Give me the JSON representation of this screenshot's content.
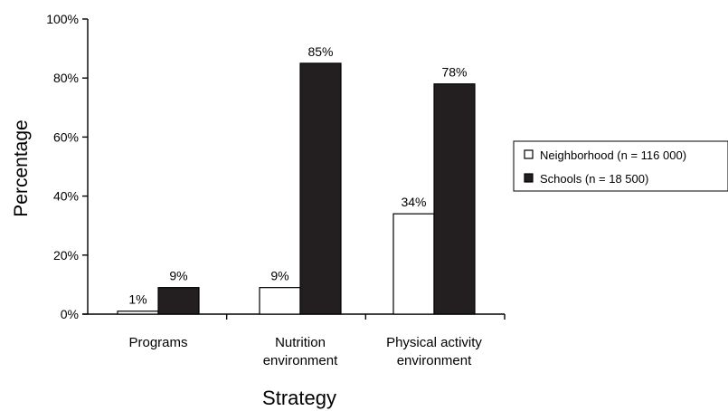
{
  "chart_data": {
    "type": "bar",
    "title": "",
    "xlabel": "Strategy",
    "ylabel": "Percentage",
    "ylim": [
      0,
      100
    ],
    "yticks": [
      "0%",
      "20%",
      "40%",
      "60%",
      "80%",
      "100%"
    ],
    "categories": [
      [
        "Programs"
      ],
      [
        "Nutrition",
        "environment"
      ],
      [
        "Physical activity",
        "environment"
      ]
    ],
    "series": [
      {
        "name": "Neighborhood (n = 116  000)",
        "fill": "#ffffff",
        "values": [
          1,
          9,
          34
        ],
        "labels": [
          "1%",
          "9%",
          "34%"
        ]
      },
      {
        "name": "Schools (n = 18 500)",
        "fill": "#231f20",
        "values": [
          9,
          85,
          78
        ],
        "labels": [
          "9%",
          "85%",
          "78%"
        ]
      }
    ],
    "grid": false,
    "legend_position": "right"
  }
}
